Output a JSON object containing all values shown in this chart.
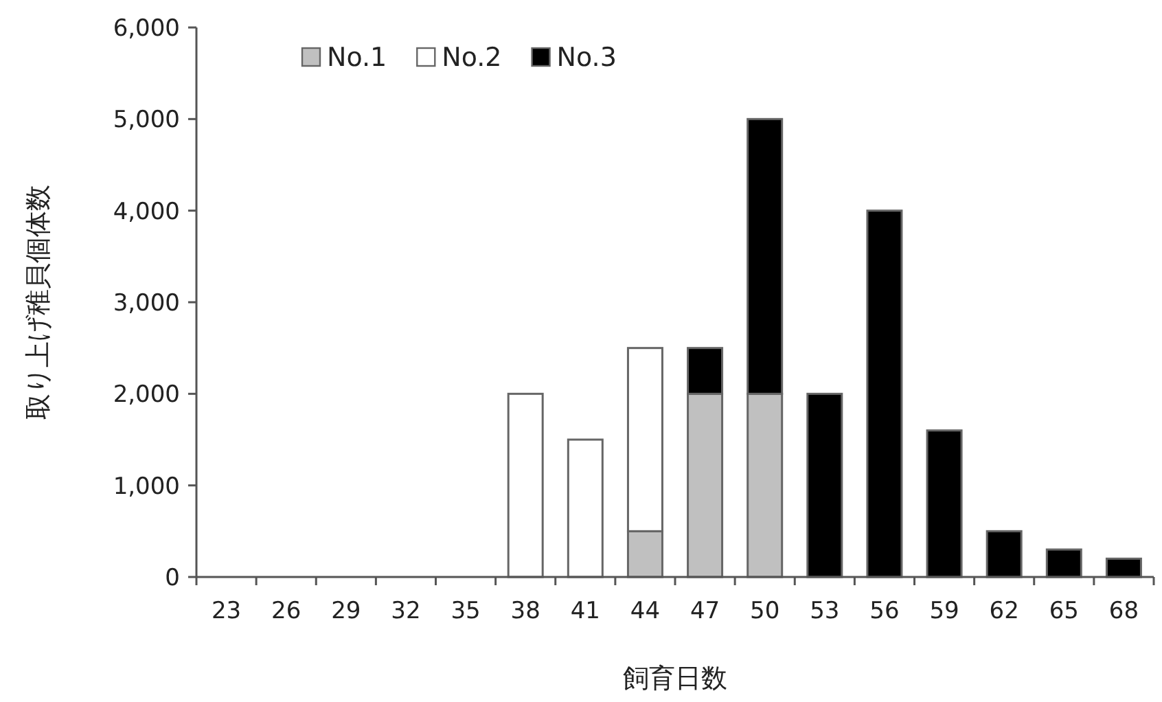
{
  "chart_data": {
    "type": "bar",
    "stacked": true,
    "xlabel": "飼育日数",
    "ylabel": "取り上げ稚貝個体数",
    "categories": [
      "23",
      "26",
      "29",
      "32",
      "35",
      "38",
      "41",
      "44",
      "47",
      "50",
      "53",
      "56",
      "59",
      "62",
      "65",
      "68"
    ],
    "series": [
      {
        "name": "No.1",
        "color": "#c0c0c0",
        "values": [
          0,
          0,
          0,
          0,
          0,
          0,
          0,
          500,
          2000,
          2000,
          0,
          0,
          0,
          0,
          0,
          0
        ]
      },
      {
        "name": "No.2",
        "color": "#ffffff",
        "values": [
          0,
          0,
          0,
          0,
          0,
          2000,
          1500,
          2000,
          0,
          0,
          0,
          0,
          0,
          0,
          0,
          0
        ]
      },
      {
        "name": "No.3",
        "color": "#000000",
        "values": [
          0,
          0,
          0,
          0,
          0,
          0,
          0,
          0,
          500,
          3000,
          2000,
          4000,
          1600,
          500,
          300,
          200
        ]
      }
    ],
    "ylim": [
      0,
      6000
    ],
    "yticks": [
      0,
      {
        "value": 1000,
        "label": "1,000"
      },
      {
        "value": 2000,
        "label": "2,000"
      },
      {
        "value": 3000,
        "label": "3,000"
      },
      {
        "value": 4000,
        "label": "4,000"
      },
      {
        "value": 5000,
        "label": "5,000"
      },
      {
        "value": 6000,
        "label": "6,000"
      }
    ],
    "legend": "top"
  }
}
